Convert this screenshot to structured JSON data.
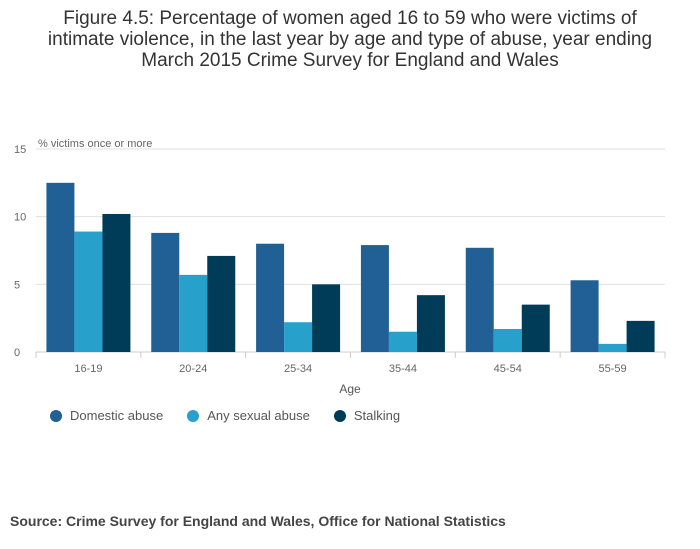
{
  "title_lines": [
    "Figure 4.5: Percentage of women aged 16 to 59 who were victims of",
    "intimate violence, in the last year by age and type of abuse, year ending",
    "March 2015 Crime Survey for England and Wales"
  ],
  "source": "Source: Crime Survey for England and Wales, Office for National Statistics",
  "chart_data": {
    "type": "bar",
    "ylabel": "% victims once or more",
    "xlabel": "Age",
    "ylim": [
      0,
      15
    ],
    "yticks": [
      0,
      5,
      10,
      15
    ],
    "grid": true,
    "legend_position": "bottom-left",
    "categories": [
      "16-19",
      "20-24",
      "25-34",
      "35-44",
      "45-54",
      "55-59"
    ],
    "series": [
      {
        "name": "Domestic abuse",
        "color": "#206095",
        "values": [
          12.5,
          8.8,
          8.0,
          7.9,
          7.7,
          5.3
        ]
      },
      {
        "name": "Any sexual abuse",
        "color": "#27A0CC",
        "values": [
          8.9,
          5.7,
          2.2,
          1.5,
          1.7,
          0.6
        ]
      },
      {
        "name": "Stalking",
        "color": "#003C57",
        "values": [
          10.2,
          7.1,
          5.0,
          4.2,
          3.5,
          2.3
        ]
      }
    ]
  }
}
